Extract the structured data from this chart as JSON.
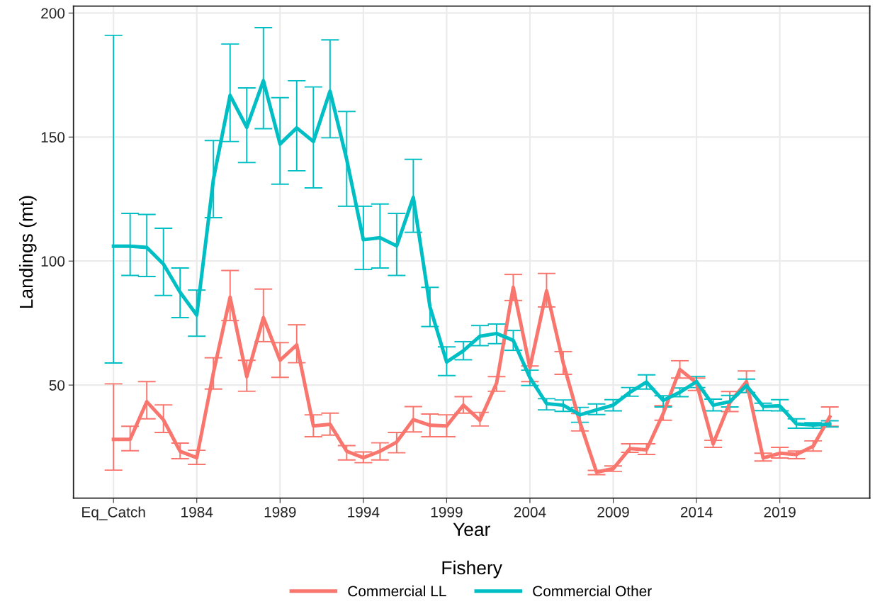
{
  "chart_data": {
    "type": "line",
    "xlabel": "Year",
    "ylabel": "Landings (mt)",
    "legend_title": "Fishery",
    "x": [
      1979,
      1980,
      1981,
      1982,
      1983,
      1984,
      1985,
      1986,
      1987,
      1988,
      1989,
      1990,
      1991,
      1992,
      1993,
      1994,
      1995,
      1996,
      1997,
      1998,
      1999,
      2000,
      2001,
      2002,
      2003,
      2004,
      2005,
      2006,
      2007,
      2008,
      2009,
      2010,
      2011,
      2012,
      2013,
      2014,
      2015,
      2016,
      2017,
      2018,
      2019,
      2020,
      2021,
      2022
    ],
    "series": [
      {
        "name": "Commercial LL",
        "color": "#f8766d",
        "values": [
          28.1,
          28.1,
          43.3,
          36,
          23.3,
          20.7,
          55,
          85.4,
          53.4,
          77.2,
          60,
          66.2,
          33.5,
          34.2,
          23.3,
          20.7,
          23.3,
          27,
          36.1,
          33.8,
          33.5,
          41.9,
          35.8,
          50.8,
          89.4,
          57,
          88,
          58.9,
          35,
          14.9,
          16.3,
          24.4,
          23.9,
          38.5,
          56.3,
          50.9,
          26.3,
          42.9,
          51.4,
          20.6,
          22.5,
          22,
          25.3,
          37.2
        ],
        "errors": [
          [
            15.7,
            50.5
          ],
          [
            23.5,
            33.4
          ],
          [
            36.4,
            51.4
          ],
          [
            30.9,
            42
          ],
          [
            20.3,
            26.6
          ],
          [
            18,
            23.7
          ],
          [
            48.4,
            61
          ],
          [
            76,
            96.2
          ],
          [
            47.5,
            60
          ],
          [
            67.5,
            88.7
          ],
          [
            53.1,
            67.1
          ],
          [
            59,
            74.3
          ],
          [
            29.2,
            38
          ],
          [
            29.8,
            38.7
          ],
          [
            19.8,
            25.6
          ],
          [
            18.7,
            23
          ],
          [
            19.8,
            26.7
          ],
          [
            22.7,
            30.9
          ],
          [
            31.1,
            41.3
          ],
          [
            29.2,
            38.3
          ],
          [
            29.2,
            38
          ],
          [
            38.7,
            45.3
          ],
          [
            33.5,
            39
          ],
          [
            47.5,
            53.4
          ],
          [
            84.1,
            94.6
          ],
          [
            51.4,
            57.7
          ],
          [
            81.5,
            95
          ],
          [
            54.3,
            63.5
          ],
          [
            31.5,
            38.5
          ],
          [
            13.9,
            15.6
          ],
          [
            15.2,
            17.4
          ],
          [
            22.9,
            26.3
          ],
          [
            22,
            26.3
          ],
          [
            35.8,
            41.7
          ],
          [
            52.8,
            59.8
          ],
          [
            47.8,
            52.8
          ],
          [
            24.9,
            27.7
          ],
          [
            39.3,
            47.4
          ],
          [
            47,
            55.7
          ],
          [
            19.4,
            22.5
          ],
          [
            20.6,
            24.9
          ],
          [
            20.3,
            23.4
          ],
          [
            23.4,
            27.5
          ],
          [
            33.4,
            41.2
          ]
        ]
      },
      {
        "name": "Commercial Other",
        "color": "#00bfc4",
        "values": [
          106,
          106,
          105.5,
          98.8,
          87.4,
          78.2,
          133,
          166.8,
          153.9,
          172.7,
          147.2,
          153.7,
          148.2,
          168.5,
          141,
          108.6,
          109.4,
          106.1,
          125.7,
          81.5,
          59.3,
          63.8,
          69.7,
          70.8,
          68,
          53,
          42.5,
          41.9,
          38,
          40,
          41.9,
          47.1,
          51.2,
          43.8,
          47.1,
          51.4,
          41.9,
          43.3,
          49.8,
          41.4,
          41.6,
          34.3,
          33.9,
          34.3
        ],
        "errors": [
          [
            58.9,
            191
          ],
          [
            94.2,
            119.2
          ],
          [
            93.8,
            118.8
          ],
          [
            86.1,
            113.2
          ],
          [
            77.2,
            97.2
          ],
          [
            69.7,
            88.3
          ],
          [
            117.5,
            148.6
          ],
          [
            148.2,
            187.5
          ],
          [
            139.7,
            169.8
          ],
          [
            153.4,
            194.1
          ],
          [
            131,
            165.9
          ],
          [
            136.4,
            172.7
          ],
          [
            129.5,
            170.2
          ],
          [
            149.7,
            189.2
          ],
          [
            122.1,
            160.3
          ],
          [
            96.6,
            122.1
          ],
          [
            97.2,
            123
          ],
          [
            94.2,
            119.2
          ],
          [
            111.6,
            141
          ],
          [
            73.6,
            89.4
          ],
          [
            53.8,
            65.4
          ],
          [
            60.2,
            67.5
          ],
          [
            65.9,
            74
          ],
          [
            66.7,
            74.6
          ],
          [
            64,
            72
          ],
          [
            49.8,
            56
          ],
          [
            40,
            44.5
          ],
          [
            39.4,
            44
          ],
          [
            35,
            41
          ],
          [
            38.1,
            42.4
          ],
          [
            39.6,
            44.1
          ],
          [
            45.5,
            49
          ],
          [
            48.4,
            54.1
          ],
          [
            41.2,
            45.7
          ],
          [
            45.3,
            48.8
          ],
          [
            49,
            53.5
          ],
          [
            39.6,
            44.3
          ],
          [
            41.2,
            45.8
          ],
          [
            47,
            52.4
          ],
          [
            39.7,
            42.7
          ],
          [
            39.6,
            44.1
          ],
          [
            32.6,
            36.4
          ],
          [
            32.6,
            34.8
          ],
          [
            33.1,
            35.6
          ]
        ]
      }
    ],
    "xlim": [
      1976.6,
      2024.4
    ],
    "xticks": [
      {
        "value": 1979,
        "label": "Eq_Catch"
      },
      1984,
      1989,
      1994,
      1999,
      2004,
      2009,
      2014,
      2019
    ],
    "ylim": [
      4.4,
      202.8
    ],
    "yticks": [
      50,
      100,
      150,
      200
    ],
    "grid": true,
    "legend": "bottom",
    "line_style": "solid",
    "marker": "none"
  }
}
